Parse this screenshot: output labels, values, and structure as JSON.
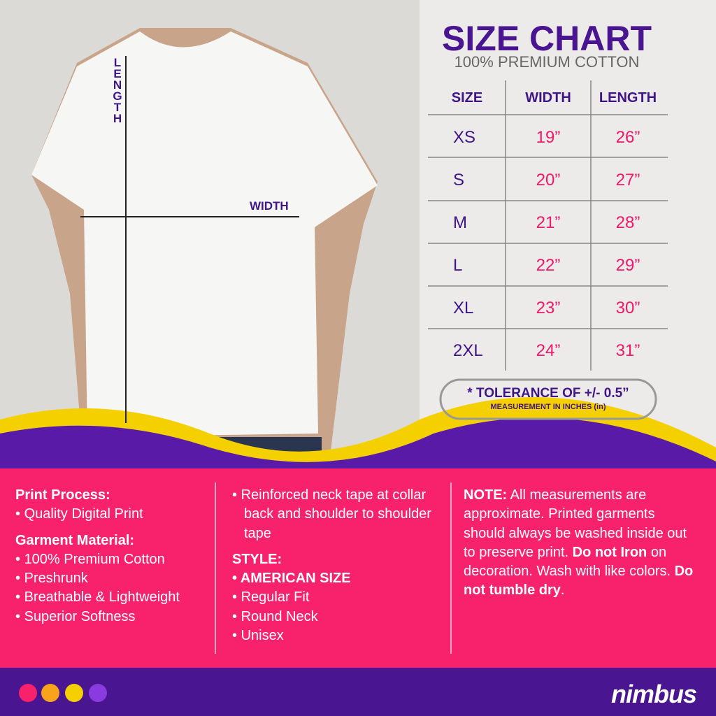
{
  "header": {
    "title": "SIZE CHART",
    "subtitle": "100% PREMIUM COTTON"
  },
  "diagram": {
    "length_label": "LENGTH",
    "width_label": "WIDTH"
  },
  "table": {
    "columns": [
      "SIZE",
      "WIDTH",
      "LENGTH"
    ],
    "rows": [
      [
        "XS",
        "19”",
        "26”"
      ],
      [
        "S",
        "20”",
        "27”"
      ],
      [
        "M",
        "21”",
        "28”"
      ],
      [
        "L",
        "22”",
        "29”"
      ],
      [
        "XL",
        "23”",
        "30”"
      ],
      [
        "2XL",
        "24”",
        "31”"
      ]
    ]
  },
  "tolerance": {
    "title": "* TOLERANCE OF +/- 0.5”",
    "subtitle": "MEASUREMENT IN INCHES (in)"
  },
  "info": {
    "columns": [
      {
        "sections": [
          {
            "heading": "Print Process:",
            "items": [
              "Quality Digital Print"
            ]
          },
          {
            "heading": "Garment Material:",
            "items": [
              "100% Premium Cotton",
              "Preshrunk",
              "Breathable & Lightweight",
              "Superior Softness"
            ]
          }
        ]
      },
      {
        "sections": [
          {
            "items": [
              "Reinforced neck tape at collar back and shoulder to shoulder tape"
            ]
          },
          {
            "heading": "STYLE:",
            "items": [
              {
                "text": "AMERICAN SIZE",
                "bold": true
              },
              "Regular Fit",
              "Round Neck",
              "Unisex"
            ]
          }
        ]
      }
    ],
    "note": [
      {
        "text": "NOTE:",
        "bold": true
      },
      {
        "text": " All measurements are approximate. Printed garments should always be washed inside out to preserve print. "
      },
      {
        "text": "Do not Iron",
        "bold": true
      },
      {
        "text": " on decoration. Wash with like colors. "
      },
      {
        "text": "Do not tumble dry",
        "bold": true
      },
      {
        "text": "."
      }
    ]
  },
  "footer": {
    "brand": "nimbus"
  }
}
